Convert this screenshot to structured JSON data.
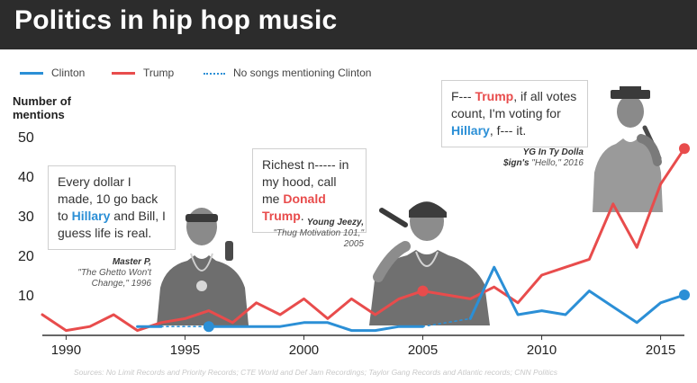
{
  "title": "Politics in hip hop music",
  "legend": {
    "clinton": "Clinton",
    "trump": "Trump",
    "no_songs": "No songs mentioning Clinton"
  },
  "colors": {
    "clinton": "#2b8fd6",
    "trump": "#e84c4c",
    "header_bg": "#2c2c2c"
  },
  "quotes": {
    "master_p": {
      "pre": "Every dollar I made, 10 go back to ",
      "name": "Hillary",
      "post": " and Bill, I guess life is real."
    },
    "jeezy": {
      "pre": "Richest n----- in my hood, call me ",
      "name": "Donald Trump",
      "post": "."
    },
    "yg": {
      "pre1": "F--- ",
      "name1": "Trump",
      "mid": ", if all votes count, I'm voting for ",
      "name2": "Hillary",
      "post": ", f--- it."
    }
  },
  "captions": {
    "master_p": {
      "artist": "Master P,",
      "song": "\"The Ghetto Won't Change,\" 1996"
    },
    "jeezy": {
      "artist": "Young Jeezy,",
      "song": "\"Thug Motivation 101,\" 2005"
    },
    "yg": {
      "artist_line1": "YG In Ty Dolla",
      "artist_line2": "$ign's",
      "song": "\"Hello,\" 2016"
    }
  },
  "source": "Sources: No Limit Records and Priority Records; CTE World and Def Jam Recordings; Taylor Gang Records and Atlantic records; CNN Politics",
  "chart_data": {
    "type": "line",
    "title": "Politics in hip hop music",
    "ylabel": "Number of mentions",
    "xlabel": "",
    "xlim": [
      1989,
      2016
    ],
    "ylim": [
      0,
      50
    ],
    "x_ticks": [
      1990,
      1995,
      2000,
      2005,
      2010,
      2015
    ],
    "y_ticks": [
      10,
      20,
      30,
      40,
      50
    ],
    "grid": false,
    "legend_position": "top-left",
    "series": [
      {
        "name": "Trump",
        "color": "#e84c4c",
        "points": [
          [
            1989,
            5
          ],
          [
            1990,
            1
          ],
          [
            1991,
            2
          ],
          [
            1992,
            5
          ],
          [
            1993,
            1
          ],
          [
            1994,
            3
          ],
          [
            1995,
            4
          ],
          [
            1996,
            6
          ],
          [
            1997,
            3
          ],
          [
            1998,
            8
          ],
          [
            1999,
            5
          ],
          [
            2000,
            9
          ],
          [
            2001,
            4
          ],
          [
            2002,
            9
          ],
          [
            2003,
            5
          ],
          [
            2004,
            9
          ],
          [
            2005,
            11
          ],
          [
            2006,
            10
          ],
          [
            2007,
            9
          ],
          [
            2008,
            12
          ],
          [
            2009,
            8
          ],
          [
            2010,
            15
          ],
          [
            2011,
            17
          ],
          [
            2012,
            19
          ],
          [
            2013,
            33
          ],
          [
            2014,
            22
          ],
          [
            2015,
            38
          ],
          [
            2016,
            47
          ]
        ],
        "highlighted": [
          2005,
          2016
        ]
      },
      {
        "name": "Clinton",
        "color": "#2b8fd6",
        "segments": [
          [
            [
              1993,
              2
            ],
            [
              1994,
              2
            ]
          ],
          [
            [
              1996,
              2
            ],
            [
              1997,
              2
            ],
            [
              1998,
              2
            ],
            [
              1999,
              2
            ],
            [
              2000,
              3
            ],
            [
              2001,
              3
            ],
            [
              2002,
              1
            ],
            [
              2003,
              1
            ],
            [
              2004,
              2
            ],
            [
              2005,
              2
            ]
          ],
          [
            [
              2007,
              4
            ],
            [
              2008,
              17
            ],
            [
              2009,
              5
            ],
            [
              2010,
              6
            ],
            [
              2011,
              5
            ],
            [
              2012,
              11
            ],
            [
              2013,
              7
            ],
            [
              2014,
              3
            ],
            [
              2015,
              8
            ],
            [
              2016,
              10
            ]
          ]
        ],
        "highlighted": [
          1996,
          2016
        ]
      },
      {
        "name": "No songs mentioning Clinton",
        "color": "#2b8fd6",
        "style": "dotted",
        "segments": [
          [
            [
              1994,
              2
            ],
            [
              1996,
              2
            ]
          ],
          [
            [
              2005,
              2
            ],
            [
              2007,
              4
            ]
          ]
        ]
      }
    ]
  }
}
